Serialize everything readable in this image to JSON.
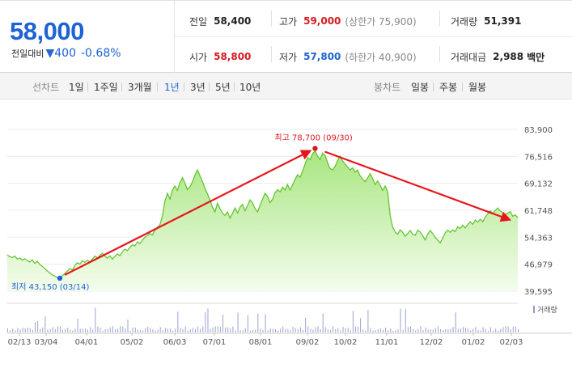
{
  "quote": {
    "price": "58,000",
    "change_label": "전일대비",
    "change_symbol": "▼",
    "change_amount": "400",
    "change_pct": "-0.68%",
    "prev_close_label": "전일",
    "prev_close": "58,400",
    "high_label": "고가",
    "high": "59,000",
    "upper_limit": "(상한가 75,900)",
    "volume_label": "거래량",
    "volume": "51,391",
    "open_label": "시가",
    "open": "58,800",
    "low_label": "저가",
    "low": "57,800",
    "lower_limit": "(하한가 40,900)",
    "trade_value_label": "거래대금",
    "trade_value": "2,988",
    "trade_value_unit": "백만"
  },
  "tabs": {
    "line_label": "선차트",
    "line_ranges": [
      "1일",
      "1주일",
      "3개월",
      "1년",
      "3년",
      "5년",
      "10년"
    ],
    "selected_range": "1년",
    "candle_label": "봉차트",
    "candle_ranges": [
      "일봉",
      "주봉",
      "월봉"
    ]
  },
  "chart_data": {
    "type": "area",
    "y_ticks": [
      "83,900",
      "76,516",
      "69,132",
      "61,748",
      "54,363",
      "46,979",
      "39,595"
    ],
    "ylim": [
      39595,
      83900
    ],
    "x_ticks": [
      "02/13",
      "03/04",
      "04/01",
      "05/02",
      "06/03",
      "07/01",
      "08/01",
      "09/02",
      "10/02",
      "11/01",
      "12/02",
      "01/02",
      "02/03"
    ],
    "max_label": "최고 78,700 (09/30)",
    "min_label": "최저 43,150 (03/14)",
    "max": {
      "date": "09/30",
      "value": 78700
    },
    "min": {
      "date": "03/14",
      "value": 43150
    },
    "volume_legend": "거래량",
    "colors": {
      "line": "#5cc228",
      "fill_top": "#a8e680",
      "fill_bottom": "#f4fced",
      "max_dot": "#d71920",
      "min_dot": "#1e63d3",
      "arrow": "#e8141b"
    },
    "series": [
      {
        "values": [
          49500,
          49000,
          48800,
          49200,
          48400,
          48700,
          48100,
          48500,
          48000,
          47600,
          48200,
          47200,
          47800,
          46900,
          46400,
          45800,
          45100,
          44600,
          44000,
          43700,
          43300,
          43150,
          43800,
          44400,
          45100,
          45800,
          45400,
          46600,
          47400,
          47000,
          47900,
          47500,
          48100,
          47600,
          48400,
          49200,
          48700,
          49400,
          50000,
          49200,
          48600,
          49300,
          48400,
          49100,
          49800,
          49300,
          50400,
          51100,
          50700,
          51600,
          52300,
          52000,
          53100,
          52600,
          53600,
          54400,
          54800,
          55400,
          55000,
          56300,
          57100,
          57800,
          60200,
          64300,
          66400,
          64800,
          67300,
          68400,
          67200,
          69300,
          70700,
          69200,
          67400,
          68200,
          69600,
          71400,
          72800,
          71200,
          69600,
          67800,
          66200,
          64600,
          62600,
          61300,
          63700,
          62200,
          61000,
          60300,
          61300,
          59600,
          60900,
          62400,
          61000,
          62600,
          63400,
          61600,
          63000,
          64600,
          63800,
          62200,
          61300,
          63100,
          64800,
          66400,
          65600,
          63800,
          64800,
          66600,
          67400,
          66800,
          68100,
          67300,
          68800,
          67300,
          68700,
          70200,
          71500,
          70800,
          72500,
          74400,
          76200,
          75600,
          77300,
          78000,
          76600,
          75600,
          77400,
          76800,
          74800,
          73200,
          72800,
          73800,
          75400,
          76600,
          75300,
          74400,
          73600,
          72800,
          73400,
          72200,
          72800,
          71200,
          70300,
          69600,
          70600,
          71800,
          70400,
          68800,
          69800,
          68600,
          67200,
          68400,
          66800,
          60200,
          57200,
          55800,
          55200,
          56400,
          55700,
          54600,
          55400,
          56200,
          55200,
          54900,
          56300,
          55800,
          54800,
          53600,
          55200,
          56200,
          55400,
          54300,
          53600,
          52800,
          54100,
          55600,
          56300,
          55700,
          56400,
          55900,
          57200,
          56800,
          57700,
          56900,
          57800,
          58600,
          57900,
          59100,
          58500,
          59300,
          58600,
          59900,
          60800,
          61600,
          60900,
          61700,
          62400,
          61600,
          61100,
          60600,
          61000,
          61400,
          60100,
          60500,
          59700
        ]
      }
    ]
  }
}
